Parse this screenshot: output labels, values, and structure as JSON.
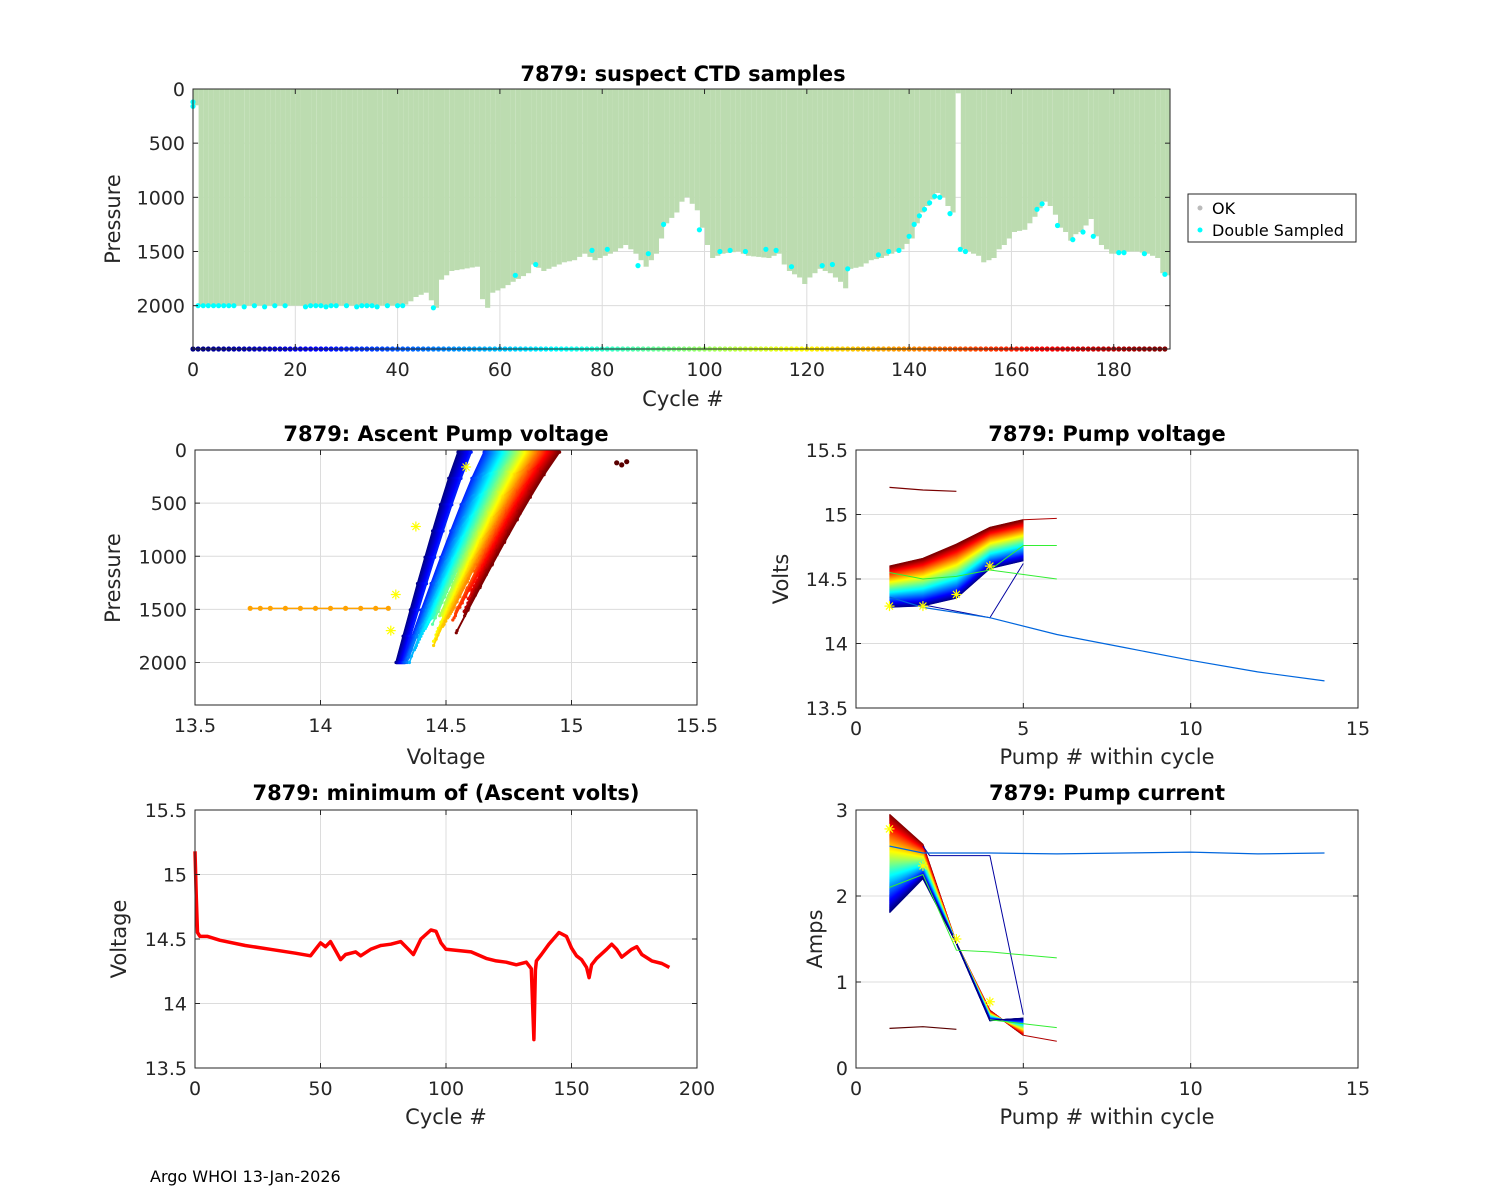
{
  "footer": "Argo WHOI 13-Jan-2026",
  "colors": {
    "ok_fill": "#bcdcb0",
    "double_sampled": "#00ffff",
    "min_volts_line": "#ff0000",
    "yellow_marker": "#ffff00"
  },
  "chart_data": [
    {
      "id": "ctd",
      "type": "area",
      "title": "7879: suspect CTD samples",
      "xlabel": "Cycle #",
      "ylabel": "Pressure",
      "xlim": [
        0,
        191
      ],
      "ylim": [
        2400,
        0
      ],
      "xticks": [
        0,
        20,
        40,
        60,
        80,
        100,
        120,
        140,
        160,
        180
      ],
      "yticks": [
        0,
        500,
        1000,
        1500,
        2000
      ],
      "legend": {
        "position": "outside-right",
        "entries": [
          "OK",
          "Double Sampled"
        ]
      },
      "max_pressure_anchors": [
        [
          0,
          150
        ],
        [
          1,
          2000
        ],
        [
          40,
          2000
        ],
        [
          41,
          1990
        ],
        [
          42,
          1960
        ],
        [
          43,
          1920
        ],
        [
          45,
          1880
        ],
        [
          47,
          2020
        ],
        [
          48,
          1760
        ],
        [
          50,
          1680
        ],
        [
          55,
          1640
        ],
        [
          56,
          1940
        ],
        [
          57,
          2020
        ],
        [
          58,
          1880
        ],
        [
          60,
          1840
        ],
        [
          62,
          1780
        ],
        [
          65,
          1700
        ],
        [
          66,
          1620
        ],
        [
          68,
          1680
        ],
        [
          70,
          1640
        ],
        [
          72,
          1600
        ],
        [
          74,
          1580
        ],
        [
          76,
          1520
        ],
        [
          78,
          1580
        ],
        [
          80,
          1540
        ],
        [
          82,
          1500
        ],
        [
          84,
          1440
        ],
        [
          86,
          1520
        ],
        [
          88,
          1640
        ],
        [
          90,
          1520
        ],
        [
          91,
          1380
        ],
        [
          92,
          1240
        ],
        [
          94,
          1140
        ],
        [
          95,
          1040
        ],
        [
          96,
          1000
        ],
        [
          97,
          1060
        ],
        [
          98,
          1120
        ],
        [
          99,
          1280
        ],
        [
          100,
          1440
        ],
        [
          101,
          1560
        ],
        [
          103,
          1520
        ],
        [
          106,
          1500
        ],
        [
          108,
          1540
        ],
        [
          112,
          1560
        ],
        [
          114,
          1520
        ],
        [
          115,
          1620
        ],
        [
          116,
          1680
        ],
        [
          118,
          1740
        ],
        [
          119,
          1800
        ],
        [
          120,
          1740
        ],
        [
          122,
          1660
        ],
        [
          124,
          1700
        ],
        [
          126,
          1780
        ],
        [
          127,
          1840
        ],
        [
          128,
          1660
        ],
        [
          130,
          1640
        ],
        [
          132,
          1580
        ],
        [
          134,
          1560
        ],
        [
          136,
          1520
        ],
        [
          138,
          1480
        ],
        [
          140,
          1380
        ],
        [
          141,
          1240
        ],
        [
          142,
          1140
        ],
        [
          143,
          1080
        ],
        [
          144,
          1020
        ],
        [
          145,
          960
        ],
        [
          146,
          1000
        ],
        [
          147,
          1080
        ],
        [
          148,
          1140
        ],
        [
          149,
          40
        ],
        [
          150,
          1480
        ],
        [
          151,
          1500
        ],
        [
          153,
          1540
        ],
        [
          154,
          1600
        ],
        [
          156,
          1560
        ],
        [
          157,
          1480
        ],
        [
          158,
          1440
        ],
        [
          159,
          1380
        ],
        [
          160,
          1320
        ],
        [
          162,
          1300
        ],
        [
          163,
          1240
        ],
        [
          164,
          1180
        ],
        [
          165,
          1100
        ],
        [
          166,
          1040
        ],
        [
          167,
          1080
        ],
        [
          168,
          1160
        ],
        [
          169,
          1280
        ],
        [
          170,
          1320
        ],
        [
          171,
          1400
        ],
        [
          172,
          1340
        ],
        [
          173,
          1320
        ],
        [
          174,
          1260
        ],
        [
          175,
          1200
        ],
        [
          176,
          1360
        ],
        [
          177,
          1440
        ],
        [
          178,
          1480
        ],
        [
          179,
          1520
        ],
        [
          180,
          1520
        ],
        [
          182,
          1500
        ],
        [
          184,
          1500
        ],
        [
          186,
          1520
        ],
        [
          188,
          1560
        ],
        [
          189,
          1700
        ],
        [
          190,
          1720
        ]
      ],
      "double_sampled": [
        [
          0,
          120
        ],
        [
          0,
          160
        ],
        [
          1,
          2000
        ],
        [
          2,
          2000
        ],
        [
          3,
          2000
        ],
        [
          4,
          2000
        ],
        [
          5,
          2000
        ],
        [
          6,
          2000
        ],
        [
          7,
          2000
        ],
        [
          8,
          2000
        ],
        [
          10,
          2010
        ],
        [
          12,
          2000
        ],
        [
          14,
          2010
        ],
        [
          16,
          2000
        ],
        [
          18,
          2000
        ],
        [
          22,
          2010
        ],
        [
          23,
          2000
        ],
        [
          24,
          2000
        ],
        [
          25,
          2000
        ],
        [
          26,
          2010
        ],
        [
          27,
          2000
        ],
        [
          28,
          2000
        ],
        [
          30,
          2000
        ],
        [
          32,
          2010
        ],
        [
          33,
          2000
        ],
        [
          34,
          2000
        ],
        [
          35,
          2000
        ],
        [
          36,
          2010
        ],
        [
          38,
          2000
        ],
        [
          40,
          2000
        ],
        [
          41,
          2000
        ],
        [
          47,
          2020
        ],
        [
          63,
          1720
        ],
        [
          67,
          1620
        ],
        [
          78,
          1490
        ],
        [
          81,
          1480
        ],
        [
          87,
          1630
        ],
        [
          89,
          1520
        ],
        [
          92,
          1250
        ],
        [
          99,
          1300
        ],
        [
          103,
          1500
        ],
        [
          105,
          1490
        ],
        [
          108,
          1500
        ],
        [
          112,
          1480
        ],
        [
          114,
          1490
        ],
        [
          117,
          1640
        ],
        [
          123,
          1630
        ],
        [
          125,
          1620
        ],
        [
          128,
          1660
        ],
        [
          134,
          1530
        ],
        [
          136,
          1500
        ],
        [
          138,
          1490
        ],
        [
          140,
          1360
        ],
        [
          141,
          1250
        ],
        [
          142,
          1170
        ],
        [
          143,
          1110
        ],
        [
          144,
          1050
        ],
        [
          145,
          990
        ],
        [
          146,
          1000
        ],
        [
          148,
          1150
        ],
        [
          150,
          1480
        ],
        [
          151,
          1500
        ],
        [
          165,
          1110
        ],
        [
          166,
          1060
        ],
        [
          169,
          1260
        ],
        [
          172,
          1390
        ],
        [
          174,
          1320
        ],
        [
          176,
          1360
        ],
        [
          181,
          1510
        ],
        [
          182,
          1510
        ],
        [
          186,
          1520
        ],
        [
          190,
          1710
        ]
      ]
    },
    {
      "id": "ascent",
      "type": "line",
      "title": "7879: Ascent Pump voltage",
      "xlabel": "Voltage",
      "ylabel": "Pressure",
      "xlim": [
        13.5,
        15.5
      ],
      "ylim": [
        2400,
        0
      ],
      "xticks": [
        13.5,
        14,
        14.5,
        15,
        15.5
      ],
      "yticks": [
        0,
        500,
        1000,
        1500,
        2000
      ],
      "series_note": "one curve per cycle, colored by cycle number (jet colormap)",
      "sample_cycles": [
        2,
        18,
        34,
        50,
        66,
        82,
        98,
        114,
        130,
        146,
        162,
        178,
        190
      ],
      "outlier_cycle_136_voltages": [
        13.72,
        13.76,
        13.8,
        13.86,
        13.92,
        13.98,
        14.04,
        14.1,
        14.16,
        14.22,
        14.27
      ],
      "outlier_cycle_136_pressure": 1490,
      "first_cycle_points": [
        [
          15.18,
          120
        ],
        [
          15.2,
          140
        ],
        [
          15.22,
          110
        ]
      ],
      "yellow_markers": [
        [
          14.58,
          160
        ],
        [
          14.38,
          720
        ],
        [
          14.3,
          1360
        ],
        [
          14.28,
          1700
        ]
      ]
    },
    {
      "id": "pumpv",
      "type": "line",
      "title": "7879: Pump voltage",
      "xlabel": "Pump # within cycle",
      "ylabel": "Volts",
      "xlim": [
        0,
        15
      ],
      "ylim": [
        13.5,
        15.5
      ],
      "xticks": [
        0,
        5,
        10,
        15
      ],
      "yticks": [
        13.5,
        14,
        14.5,
        15,
        15.5
      ],
      "series_note": "one line per cycle, colored by cycle number",
      "first_cycle_line": [
        [
          1,
          15.21
        ],
        [
          2,
          15.19
        ],
        [
          3,
          15.18
        ]
      ],
      "green_cycle_line": [
        [
          1,
          14.55
        ],
        [
          2,
          14.5
        ],
        [
          3,
          14.52
        ],
        [
          4,
          14.57
        ],
        [
          5,
          14.76
        ],
        [
          6,
          14.76
        ]
      ],
      "green_cycle_line2": [
        [
          4,
          14.57
        ],
        [
          6,
          14.5
        ]
      ],
      "long_cycle_136": [
        [
          1,
          14.36
        ],
        [
          2,
          14.28
        ],
        [
          4,
          14.2
        ],
        [
          6,
          14.07
        ],
        [
          8,
          13.97
        ],
        [
          10,
          13.87
        ],
        [
          12,
          13.78
        ],
        [
          14,
          13.71
        ]
      ],
      "yellow_markers": [
        [
          1,
          14.29
        ],
        [
          2,
          14.29
        ],
        [
          3,
          14.38
        ],
        [
          4,
          14.6
        ]
      ]
    },
    {
      "id": "minv",
      "type": "line",
      "title": "7879: minimum of (Ascent volts)",
      "xlabel": "Cycle #",
      "ylabel": "Voltage",
      "xlim": [
        0,
        200
      ],
      "ylim": [
        13.5,
        15.5
      ],
      "xticks": [
        0,
        50,
        100,
        150,
        200
      ],
      "yticks": [
        13.5,
        14,
        14.5,
        15,
        15.5
      ],
      "line": [
        [
          0,
          15.18
        ],
        [
          0.5,
          14.82
        ],
        [
          1,
          14.55
        ],
        [
          2,
          14.52
        ],
        [
          5,
          14.52
        ],
        [
          10,
          14.49
        ],
        [
          20,
          14.45
        ],
        [
          30,
          14.42
        ],
        [
          40,
          14.39
        ],
        [
          46,
          14.37
        ],
        [
          48,
          14.42
        ],
        [
          50,
          14.47
        ],
        [
          52,
          14.44
        ],
        [
          54,
          14.48
        ],
        [
          56,
          14.41
        ],
        [
          58,
          14.34
        ],
        [
          60,
          14.38
        ],
        [
          64,
          14.4
        ],
        [
          66,
          14.37
        ],
        [
          70,
          14.42
        ],
        [
          74,
          14.45
        ],
        [
          78,
          14.46
        ],
        [
          82,
          14.48
        ],
        [
          85,
          14.42
        ],
        [
          87,
          14.38
        ],
        [
          90,
          14.5
        ],
        [
          94,
          14.57
        ],
        [
          96,
          14.56
        ],
        [
          98,
          14.47
        ],
        [
          100,
          14.42
        ],
        [
          110,
          14.4
        ],
        [
          116,
          14.35
        ],
        [
          120,
          14.33
        ],
        [
          124,
          14.32
        ],
        [
          128,
          14.3
        ],
        [
          132,
          14.32
        ],
        [
          134,
          14.27
        ],
        [
          135,
          13.72
        ],
        [
          135.6,
          14.26
        ],
        [
          136,
          14.33
        ],
        [
          138,
          14.38
        ],
        [
          141,
          14.46
        ],
        [
          145,
          14.55
        ],
        [
          148,
          14.52
        ],
        [
          150,
          14.43
        ],
        [
          152,
          14.37
        ],
        [
          154,
          14.34
        ],
        [
          156,
          14.28
        ],
        [
          157,
          14.2
        ],
        [
          158,
          14.3
        ],
        [
          160,
          14.35
        ],
        [
          164,
          14.42
        ],
        [
          166,
          14.46
        ],
        [
          168,
          14.42
        ],
        [
          170,
          14.36
        ],
        [
          174,
          14.42
        ],
        [
          176,
          14.44
        ],
        [
          178,
          14.38
        ],
        [
          182,
          14.33
        ],
        [
          186,
          14.31
        ],
        [
          189,
          14.28
        ]
      ]
    },
    {
      "id": "pumpi",
      "type": "line",
      "title": "7879: Pump current",
      "xlabel": "Pump # within cycle",
      "ylabel": "Amps",
      "xlim": [
        0,
        15
      ],
      "ylim": [
        0,
        3
      ],
      "xticks": [
        0,
        5,
        10,
        15
      ],
      "yticks": [
        0,
        1,
        2,
        3
      ],
      "series_note": "one line per cycle, colored by cycle number",
      "first_cycle_line": [
        [
          1,
          0.46
        ],
        [
          2,
          0.48
        ],
        [
          3,
          0.45
        ]
      ],
      "green_cycle_line": [
        [
          1,
          2.1
        ],
        [
          2,
          2.25
        ],
        [
          3,
          1.37
        ],
        [
          4,
          1.35
        ],
        [
          6,
          1.28
        ]
      ],
      "green_cycle_line2": [
        [
          4,
          0.56
        ],
        [
          6,
          0.47
        ]
      ],
      "long_cycle_136": [
        [
          1,
          2.58
        ],
        [
          2,
          2.5
        ],
        [
          4,
          2.5
        ],
        [
          6,
          2.49
        ],
        [
          8,
          2.5
        ],
        [
          10,
          2.51
        ],
        [
          12,
          2.49
        ],
        [
          14,
          2.5
        ]
      ],
      "navy_outlier": [
        [
          2,
          2.58
        ],
        [
          2.2,
          2.47
        ],
        [
          4,
          2.47
        ],
        [
          5,
          0.62
        ]
      ],
      "yellow_markers": [
        [
          1,
          2.78
        ],
        [
          2,
          2.35
        ],
        [
          3,
          1.5
        ],
        [
          4,
          0.77
        ]
      ]
    }
  ]
}
